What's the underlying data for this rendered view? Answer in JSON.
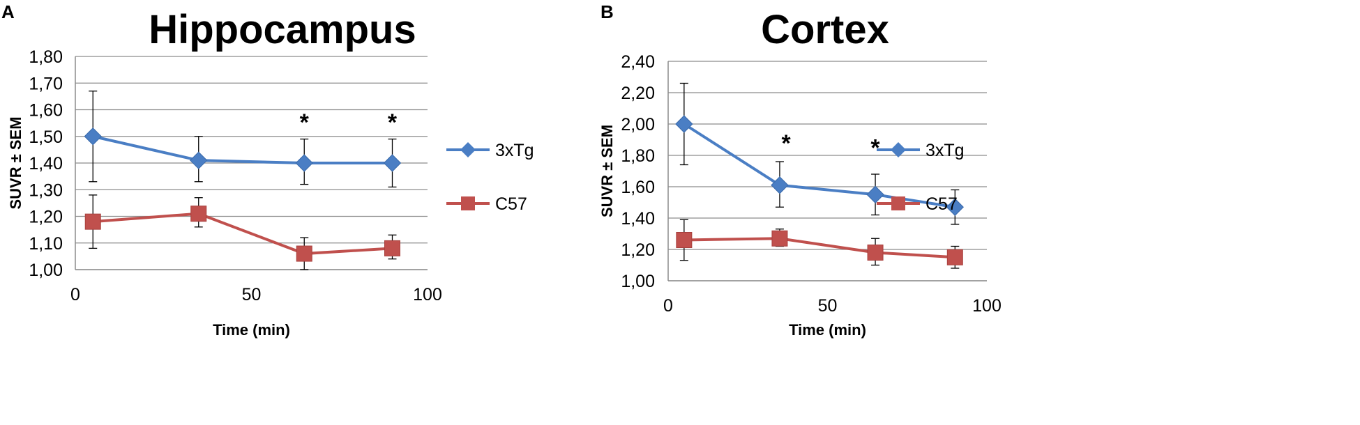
{
  "chart_data": [
    {
      "type": "line",
      "panel": "A",
      "title": "Hippocampus",
      "xlabel": "Time (min)",
      "ylabel": "SUVR ± SEM",
      "xlim": [
        0,
        100
      ],
      "ylim": [
        1.0,
        1.8
      ],
      "xticks": [
        0,
        50,
        100
      ],
      "xtick_labels": [
        "0",
        "50",
        "100"
      ],
      "yticks": [
        1.0,
        1.1,
        1.2,
        1.3,
        1.4,
        1.5,
        1.6,
        1.7,
        1.8
      ],
      "ytick_labels": [
        "1,00",
        "1,10",
        "1,20",
        "1,30",
        "1,40",
        "1,50",
        "1,60",
        "1,70",
        "1,80"
      ],
      "grid": true,
      "legend_position": "right",
      "series": [
        {
          "name": "3xTg",
          "color": "#4a7ec4",
          "marker": "diamond",
          "x": [
            5,
            35,
            65,
            90
          ],
          "y": [
            1.5,
            1.41,
            1.4,
            1.4
          ],
          "err_low": [
            1.33,
            1.33,
            1.32,
            1.31
          ],
          "err_high": [
            1.67,
            1.5,
            1.49,
            1.49
          ]
        },
        {
          "name": "C57",
          "color": "#c0504d",
          "marker": "square",
          "x": [
            5,
            35,
            65,
            90
          ],
          "y": [
            1.18,
            1.21,
            1.06,
            1.08
          ],
          "err_low": [
            1.08,
            1.16,
            1.0,
            1.04
          ],
          "err_high": [
            1.28,
            1.27,
            1.12,
            1.13
          ]
        }
      ],
      "annotations": [
        {
          "text": "*",
          "x": 65,
          "y": 1.56
        },
        {
          "text": "*",
          "x": 90,
          "y": 1.56
        }
      ]
    },
    {
      "type": "line",
      "panel": "B",
      "title": "Cortex",
      "xlabel": "Time (min)",
      "ylabel": "SUVR ± SEM",
      "xlim": [
        0,
        100
      ],
      "ylim": [
        1.0,
        2.4
      ],
      "xticks": [
        0,
        50,
        100
      ],
      "xtick_labels": [
        "0",
        "50",
        "100"
      ],
      "yticks": [
        1.0,
        1.2,
        1.4,
        1.6,
        1.8,
        2.0,
        2.2,
        2.4
      ],
      "ytick_labels": [
        "1,00",
        "1,20",
        "1,40",
        "1,60",
        "1,80",
        "2,00",
        "2,20",
        "2,40"
      ],
      "grid": true,
      "legend_position": "right",
      "series": [
        {
          "name": "3xTg",
          "color": "#4a7ec4",
          "marker": "diamond",
          "x": [
            5,
            35,
            65,
            90
          ],
          "y": [
            2.0,
            1.61,
            1.55,
            1.47
          ],
          "err_low": [
            1.74,
            1.47,
            1.42,
            1.36
          ],
          "err_high": [
            2.26,
            1.76,
            1.68,
            1.58
          ]
        },
        {
          "name": "C57",
          "color": "#c0504d",
          "marker": "square",
          "x": [
            5,
            35,
            65,
            90
          ],
          "y": [
            1.26,
            1.27,
            1.18,
            1.15
          ],
          "err_low": [
            1.13,
            1.22,
            1.1,
            1.08
          ],
          "err_high": [
            1.39,
            1.33,
            1.27,
            1.22
          ]
        }
      ],
      "annotations": [
        {
          "text": "*",
          "x": 37,
          "y": 1.89
        },
        {
          "text": "*",
          "x": 65,
          "y": 1.86
        }
      ]
    }
  ]
}
